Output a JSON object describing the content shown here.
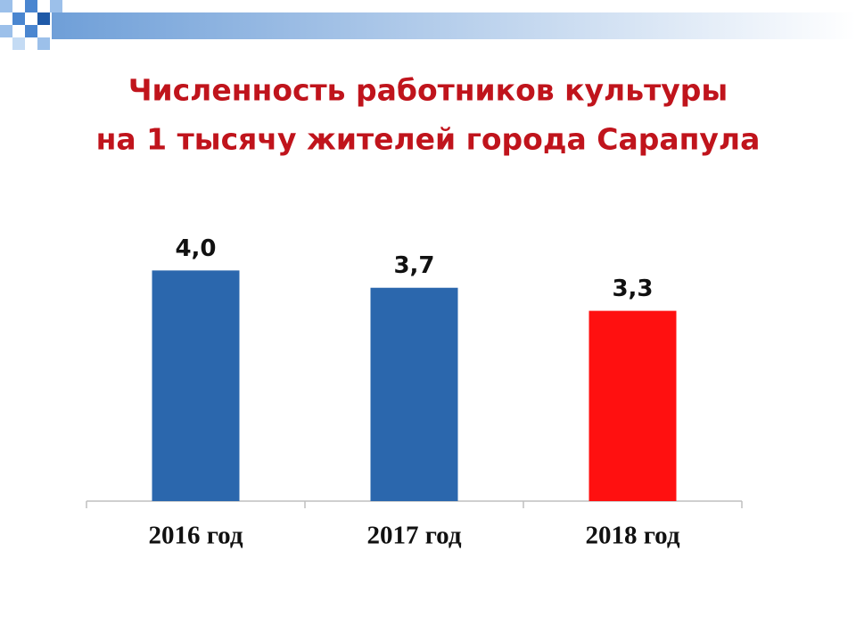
{
  "chart_data": {
    "type": "bar",
    "title": [
      "Численность работников культуры",
      "на 1 тысячу жителей города Сарапула"
    ],
    "categories": [
      "2016 год",
      "2017 год",
      "2018 год"
    ],
    "values": [
      4.0,
      3.7,
      3.3
    ],
    "value_labels": [
      "4,0",
      "3,7",
      "3,3"
    ],
    "colors": [
      "#2b67ad",
      "#2b67ad",
      "#ff1010"
    ],
    "ylim": [
      0,
      4.5
    ]
  }
}
